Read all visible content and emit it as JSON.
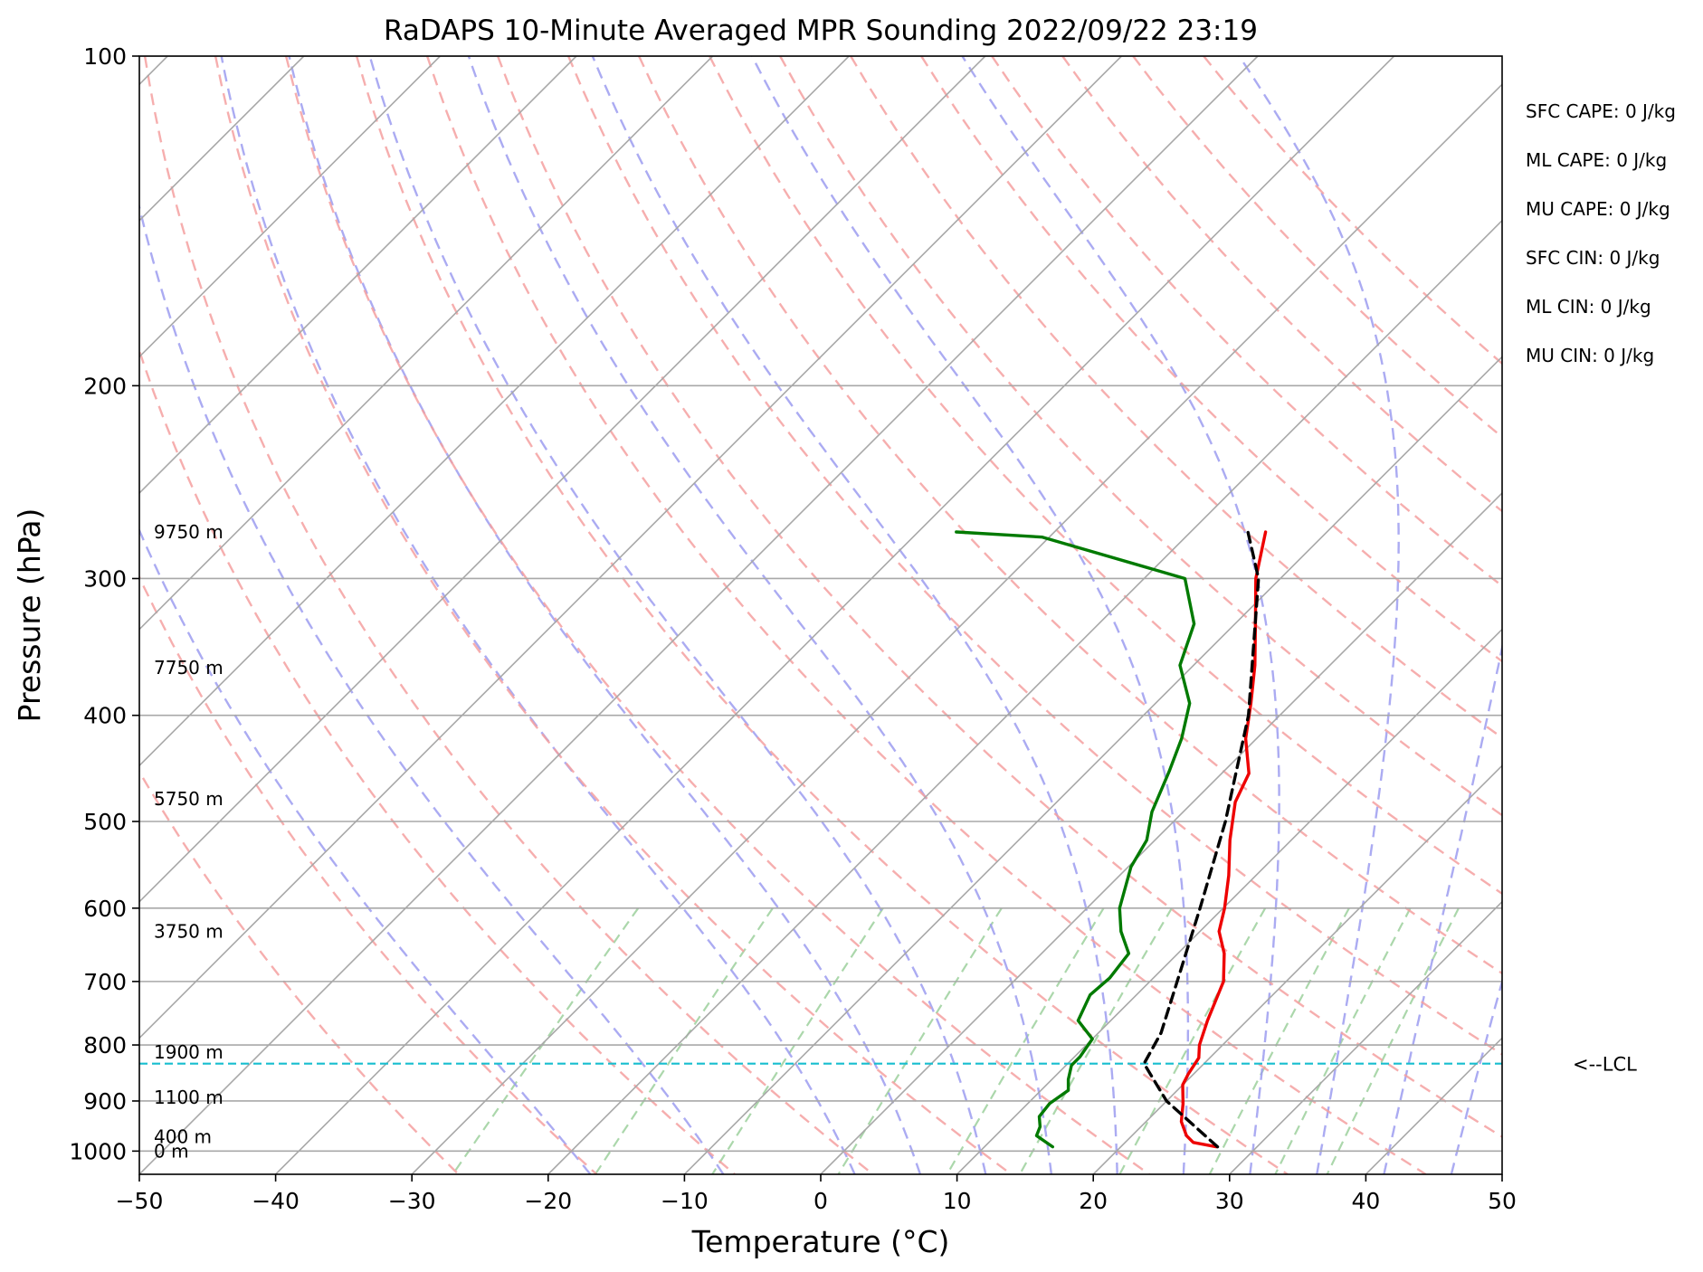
{
  "chart_data": {
    "type": "line",
    "title": "RaDAPS 10-Minute Averaged MPR Sounding 2022/09/22 23:19",
    "xlabel": "Temperature (°C)",
    "ylabel": "Pressure (hPa)",
    "xlim": [
      -50,
      50
    ],
    "ylim": [
      1050,
      100
    ],
    "yscale": "log",
    "skew": "45-degree isotherms",
    "grid": true,
    "x_ticks": [
      -50,
      -40,
      -30,
      -20,
      -10,
      0,
      10,
      20,
      30,
      40,
      50
    ],
    "x_tick_labels": [
      "−50",
      "−40",
      "−30",
      "−20",
      "−10",
      "0",
      "10",
      "20",
      "30",
      "40",
      "50"
    ],
    "y_ticks": [
      100,
      200,
      300,
      400,
      500,
      600,
      700,
      800,
      900,
      1000
    ],
    "y_tick_labels": [
      "100",
      "200",
      "300",
      "400",
      "500",
      "600",
      "700",
      "800",
      "900",
      "1000"
    ],
    "series": [
      {
        "role": "temperature",
        "color": "#ee0000",
        "points": [
          [
            991,
            27.0
          ],
          [
            982,
            25.0
          ],
          [
            968,
            24.0
          ],
          [
            940,
            22.6
          ],
          [
            905,
            21.4
          ],
          [
            870,
            20.0
          ],
          [
            850,
            19.6
          ],
          [
            822,
            19.2
          ],
          [
            800,
            18.3
          ],
          [
            760,
            17.1
          ],
          [
            700,
            15.4
          ],
          [
            660,
            13.4
          ],
          [
            630,
            11.4
          ],
          [
            600,
            10.1
          ],
          [
            560,
            8.0
          ],
          [
            520,
            5.5
          ],
          [
            480,
            3.1
          ],
          [
            452,
            2.0
          ],
          [
            420,
            -0.8
          ],
          [
            390,
            -3.0
          ],
          [
            360,
            -5.5
          ],
          [
            330,
            -8.5
          ],
          [
            300,
            -11.8
          ],
          [
            272,
            -14.5
          ]
        ]
      },
      {
        "role": "dewpoint",
        "color": "#007a00",
        "points": [
          [
            991,
            15.0
          ],
          [
            968,
            13.0
          ],
          [
            950,
            12.6
          ],
          [
            930,
            11.8
          ],
          [
            905,
            11.6
          ],
          [
            880,
            12.0
          ],
          [
            860,
            11.2
          ],
          [
            835,
            10.4
          ],
          [
            820,
            10.4
          ],
          [
            790,
            10.0
          ],
          [
            760,
            7.6
          ],
          [
            720,
            6.6
          ],
          [
            695,
            6.8
          ],
          [
            660,
            6.4
          ],
          [
            630,
            4.2
          ],
          [
            600,
            2.4
          ],
          [
            550,
            0.2
          ],
          [
            520,
            -0.6
          ],
          [
            490,
            -2.3
          ],
          [
            450,
            -4.0
          ],
          [
            420,
            -5.5
          ],
          [
            390,
            -7.5
          ],
          [
            360,
            -11.0
          ],
          [
            330,
            -13.0
          ],
          [
            300,
            -17.0
          ],
          [
            275,
            -30.5
          ],
          [
            272,
            -37.2
          ]
        ]
      },
      {
        "role": "parcel",
        "color": "#000000",
        "dashed": true,
        "points": [
          [
            991,
            27.1
          ],
          [
            900,
            20.0
          ],
          [
            832,
            15.6
          ],
          [
            780,
            14.6
          ],
          [
            700,
            12.0
          ],
          [
            600,
            8.3
          ],
          [
            500,
            3.8
          ],
          [
            400,
            -2.3
          ],
          [
            300,
            -11.6
          ],
          [
            272,
            -15.8
          ]
        ]
      }
    ],
    "reference_lines": {
      "isotherms_degC": [
        -150,
        -140,
        -130,
        -120,
        -110,
        -100,
        -90,
        -80,
        -70,
        -60,
        -50,
        -40,
        -30,
        -20,
        -10,
        0,
        10,
        20,
        30,
        40,
        50
      ],
      "dry_adiabats_degC": [
        -30,
        -20,
        -10,
        0,
        10,
        20,
        30,
        40,
        50,
        60,
        70,
        80,
        90,
        100,
        110,
        120,
        130,
        140,
        150
      ],
      "moist_adiabats_degC": [
        -20,
        -10,
        0,
        5,
        10,
        15,
        20,
        25,
        30,
        35,
        40,
        45
      ],
      "mixing_ratios_gkg": [
        0.4,
        1,
        2,
        4,
        7,
        10,
        16,
        24,
        32,
        40
      ],
      "colors": {
        "isotherm": "#a8a8a8",
        "dry_adiabat": "#f5a0a0",
        "moist_adiabat": "#9c9cf0",
        "mixing_ratio": "#8fc98f"
      }
    },
    "lcl": {
      "pressure_hpa": 832,
      "label": "<--LCL",
      "color": "#17becf"
    },
    "height_markers": [
      {
        "label": "9750 m",
        "pressure_hpa": 272
      },
      {
        "label": "7750 m",
        "pressure_hpa": 362
      },
      {
        "label": "5750 m",
        "pressure_hpa": 477
      },
      {
        "label": "3750 m",
        "pressure_hpa": 630
      },
      {
        "label": "1900 m",
        "pressure_hpa": 812
      },
      {
        "label": "1100 m",
        "pressure_hpa": 893
      },
      {
        "label": "400 m",
        "pressure_hpa": 970
      },
      {
        "label": "0 m",
        "pressure_hpa": 1000
      }
    ],
    "stats": [
      "SFC CAPE: 0 J/kg",
      "ML CAPE: 0 J/kg",
      "MU CAPE: 0 J/kg",
      "SFC CIN: 0 J/kg",
      "ML CIN: 0 J/kg",
      "MU CIN: 0 J/kg"
    ]
  }
}
